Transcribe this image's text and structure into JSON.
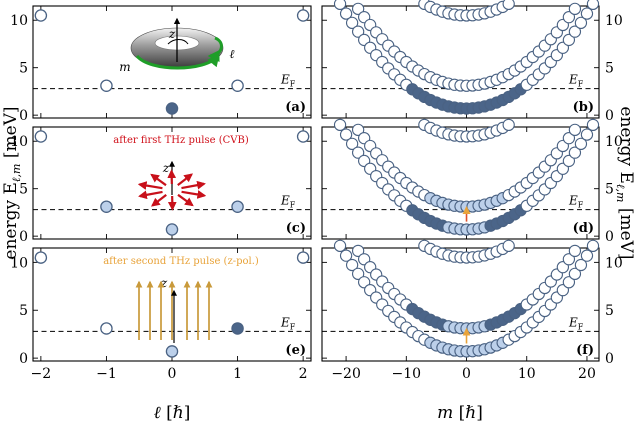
{
  "colors": {
    "stroke": "#4a6283",
    "empty": "#ffffff",
    "light": "#bcd0ea",
    "dark": "#4b6589",
    "red": "#d0101a",
    "orange": "#e8a33a",
    "gold": "#c99a3b",
    "torus_green": "#1f9e28"
  },
  "chart_data": [
    {
      "panel": "a",
      "type": "scatter",
      "panel_label": "(a)",
      "x_var": "ℓ",
      "xlim": [
        -2.12,
        2.12
      ],
      "ylim": [
        -0.3,
        11.5
      ],
      "fermi_level": 2.8,
      "fermi_label": "E",
      "points": [
        {
          "x": -2,
          "y": 10.5,
          "fill": "empty"
        },
        {
          "x": 2,
          "y": 10.5,
          "fill": "empty"
        },
        {
          "x": -1,
          "y": 3.1,
          "fill": "empty"
        },
        {
          "x": 1,
          "y": 3.1,
          "fill": "empty"
        },
        {
          "x": 0,
          "y": 0.7,
          "fill": "dark"
        }
      ],
      "inset_labels": {
        "z": "z",
        "l": "ℓ",
        "m": "m"
      }
    },
    {
      "panel": "c",
      "type": "scatter",
      "panel_label": "(c)",
      "x_var": "ℓ",
      "xlim": [
        -2.12,
        2.12
      ],
      "ylim": [
        -0.3,
        11.5
      ],
      "fermi_level": 2.8,
      "fermi_label": "E",
      "annotation": "after first THz pulse (CVB)",
      "points": [
        {
          "x": -2,
          "y": 10.5,
          "fill": "empty"
        },
        {
          "x": 2,
          "y": 10.5,
          "fill": "empty"
        },
        {
          "x": -1,
          "y": 3.1,
          "fill": "light"
        },
        {
          "x": 1,
          "y": 3.1,
          "fill": "light"
        },
        {
          "x": 0,
          "y": 0.7,
          "fill": "light"
        }
      ],
      "inset_labels": {
        "z": "z"
      }
    },
    {
      "panel": "e",
      "type": "scatter",
      "panel_label": "(e)",
      "x_var": "ℓ",
      "xlim": [
        -2.12,
        2.12
      ],
      "ylim": [
        -0.3,
        11.5
      ],
      "fermi_level": 2.8,
      "fermi_label": "E",
      "annotation": "after second THz pulse (z-pol.)",
      "points": [
        {
          "x": -2,
          "y": 10.5,
          "fill": "empty"
        },
        {
          "x": 2,
          "y": 10.5,
          "fill": "empty"
        },
        {
          "x": -1,
          "y": 3.1,
          "fill": "empty"
        },
        {
          "x": 1,
          "y": 3.1,
          "fill": "dark"
        },
        {
          "x": 0,
          "y": 0.7,
          "fill": "light"
        }
      ],
      "inset_labels": {
        "z": "z"
      }
    },
    {
      "panel": "b",
      "type": "scatter",
      "panel_label": "(b)",
      "x_var": "m",
      "xlim": [
        -24,
        22
      ],
      "ylim": [
        -0.3,
        11.5
      ],
      "fermi_level": 2.8,
      "fermi_label": "E",
      "bands": [
        {
          "ell": 0,
          "e0": 0.7,
          "curvature": 0.025
        },
        {
          "ell": 1,
          "e0": 3.1,
          "curvature": 0.025
        },
        {
          "ell": 2,
          "e0": 10.5,
          "curvature": 0.025
        }
      ],
      "m_range": [
        -22,
        22
      ],
      "occupation": {
        "band0_dark_abs_m_max": 9,
        "band0_outer": "empty",
        "band1": "empty",
        "band2": "empty"
      }
    },
    {
      "panel": "d",
      "type": "scatter",
      "panel_label": "(d)",
      "x_var": "m",
      "xlim": [
        -24,
        22
      ],
      "ylim": [
        -0.3,
        11.5
      ],
      "fermi_level": 2.8,
      "fermi_label": "E",
      "bands": [
        {
          "ell": 0,
          "e0": 0.7,
          "curvature": 0.025
        },
        {
          "ell": 1,
          "e0": 3.1,
          "curvature": 0.025
        },
        {
          "ell": 2,
          "e0": 10.5,
          "curvature": 0.025
        }
      ],
      "m_range": [
        -22,
        22
      ],
      "occupation": {
        "band0_light_abs_m_max": 3,
        "band0_dark_abs_m_max": 9,
        "band1_light_abs_m_max": 6,
        "band2": "empty"
      },
      "transition_arrow": {
        "m": 0,
        "from": 0.9,
        "to": 2.8,
        "color": "red"
      }
    },
    {
      "panel": "f",
      "type": "scatter",
      "panel_label": "(f)",
      "x_var": "m",
      "xlim": [
        -24,
        22
      ],
      "ylim": [
        -0.3,
        11.5
      ],
      "fermi_level": 2.8,
      "fermi_label": "E",
      "bands": [
        {
          "ell": 0,
          "e0": 0.7,
          "curvature": 0.025
        },
        {
          "ell": 1,
          "e0": 3.1,
          "curvature": 0.025
        },
        {
          "ell": 2,
          "e0": 10.5,
          "curvature": 0.025
        }
      ],
      "m_range": [
        -22,
        22
      ],
      "occupation": {
        "band0_light_abs_m_max": 6,
        "band1_light_abs_m_max": 3,
        "band1_dark_abs_m_max": 9,
        "band2": "empty"
      },
      "transition_arrow": {
        "m": 0,
        "from": 0.9,
        "to": 2.8,
        "color": "orange"
      }
    }
  ],
  "axes": {
    "left_ylabel": "energy E",
    "left_ylabel_sub": "ℓ,m",
    "left_ylabel_unit": " [meV]",
    "right_ylabel": "energy E",
    "right_ylabel_sub": "ℓ,m",
    "right_ylabel_unit": " [meV]",
    "left_xlabel_var": "ℓ",
    "left_xlabel_unit": " [ℏ]",
    "right_xlabel_var": "m",
    "right_xlabel_unit": " [ℏ]",
    "left_xticks": [
      -2,
      -1,
      0,
      1,
      2
    ],
    "left_xtick_labels": [
      "−2",
      "−1",
      "0",
      "1",
      "2"
    ],
    "right_xticks": [
      -20,
      -10,
      0,
      10,
      20
    ],
    "right_xtick_labels": [
      "−20",
      "−10",
      "0",
      "10",
      "20"
    ],
    "yticks": [
      0,
      5,
      10
    ],
    "ytick_labels": [
      "0",
      "5",
      "10"
    ],
    "fermi_sub": "F"
  }
}
